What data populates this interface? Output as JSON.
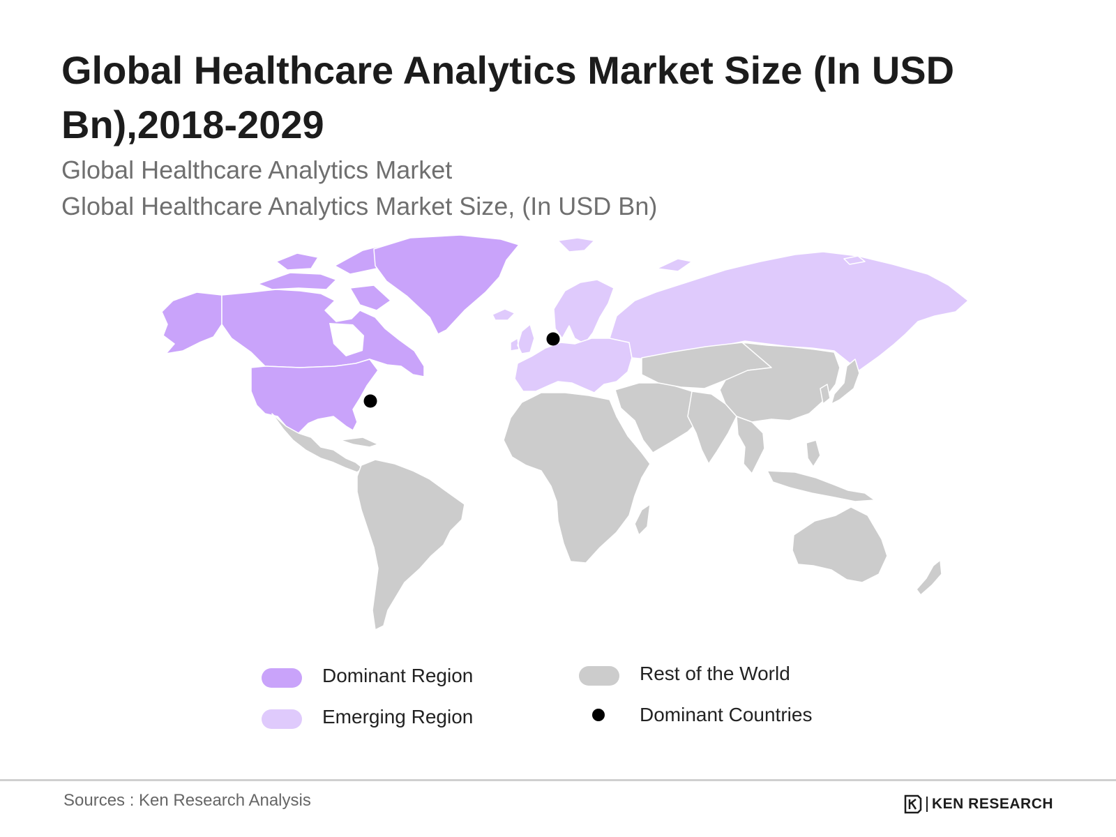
{
  "title": "Global Healthcare Analytics Market Size (In USD Bn),2018-2029",
  "subtitles": [
    "Global Healthcare Analytics Market",
    "Global Healthcare Analytics Market Size, (In USD Bn)"
  ],
  "colors": {
    "dominant": "#c9a3fa",
    "emerging": "#dfcafc",
    "rest": "#cccccc",
    "dot": "#000000",
    "border": "#ffffff"
  },
  "legend": [
    {
      "label": "Dominant Region",
      "marker": "swatch",
      "color": "#c9a3fa"
    },
    {
      "label": "Emerging Region",
      "marker": "swatch",
      "color": "#dfcafc"
    },
    {
      "label": "Rest of the World",
      "marker": "swatch",
      "color": "#cccccc"
    },
    {
      "label": "Dominant Countries",
      "marker": "dot",
      "color": "#000000"
    }
  ],
  "regions": {
    "dominant": [
      "North America",
      "Greenland"
    ],
    "emerging": [
      "Europe",
      "Russia"
    ],
    "rest": [
      "Latin America",
      "Africa",
      "Middle East",
      "Asia",
      "Oceania"
    ]
  },
  "dominant_countries": [
    "United States",
    "Germany"
  ],
  "footer": {
    "source": "Sources : Ken Research Analysis",
    "logo_text": "KEN RESEARCH",
    "logo_icon": "ken-research-k-logo"
  }
}
